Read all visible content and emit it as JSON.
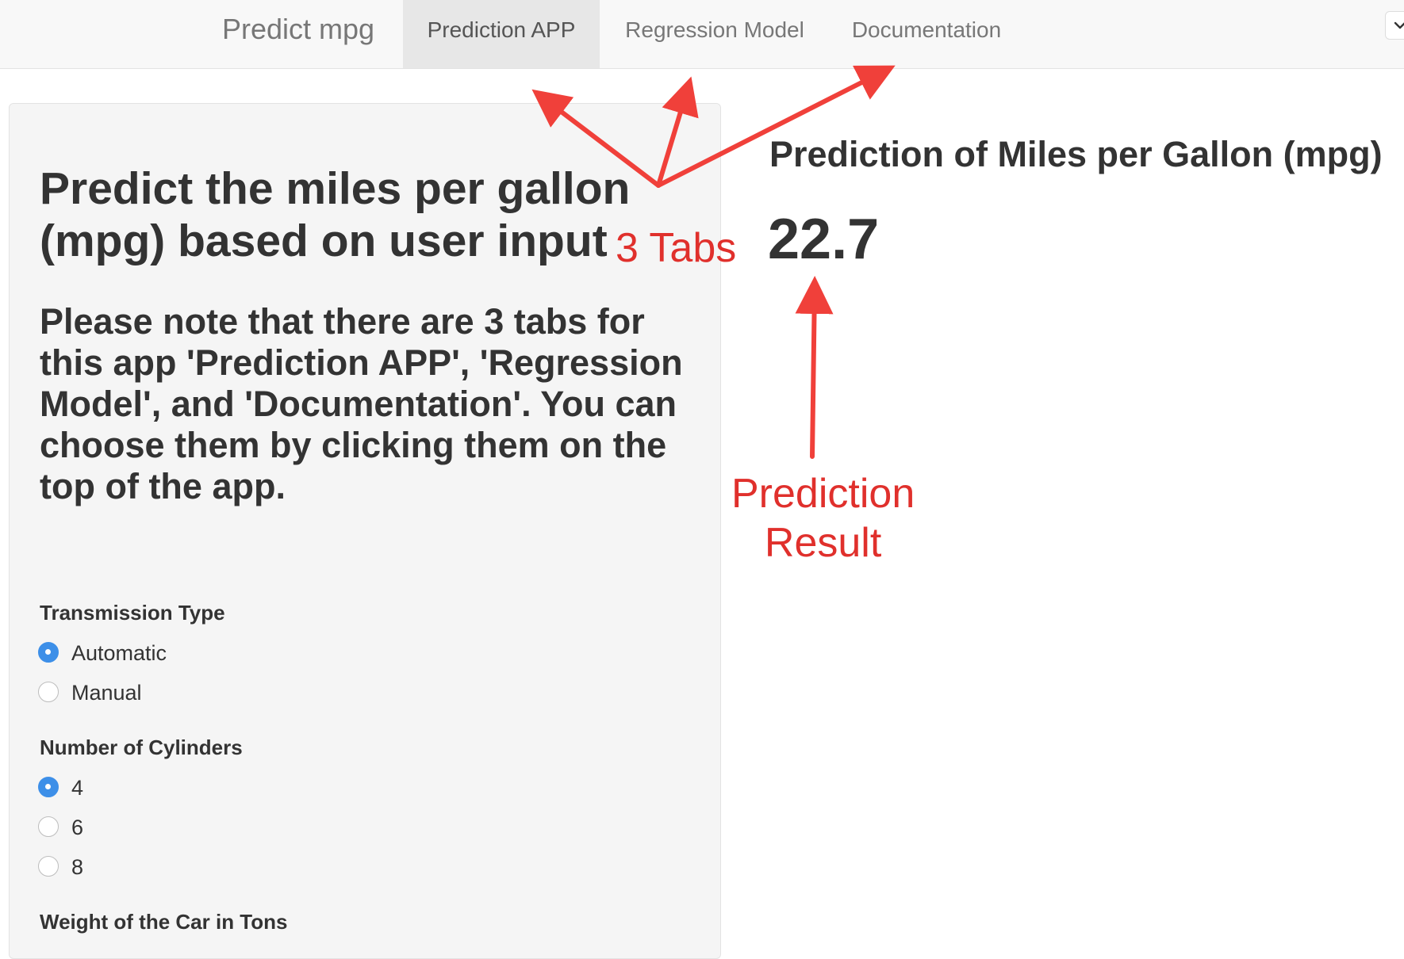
{
  "navbar": {
    "brand": "Predict mpg",
    "tabs": [
      {
        "label": "Prediction APP",
        "active": true
      },
      {
        "label": "Regression Model",
        "active": false
      },
      {
        "label": "Documentation",
        "active": false
      }
    ]
  },
  "sidebar": {
    "heading": "Predict the miles per gallon (mpg) based on user input",
    "note": "Please note that there are 3 tabs for this app 'Prediction APP', 'Regression Model', and 'Documentation'. You can choose them by clicking them on the top of the app.",
    "transmission": {
      "label": "Transmission Type",
      "options": [
        {
          "label": "Automatic",
          "checked": true
        },
        {
          "label": "Manual",
          "checked": false
        }
      ]
    },
    "cylinders": {
      "label": "Number of Cylinders",
      "options": [
        {
          "label": "4",
          "checked": true
        },
        {
          "label": "6",
          "checked": false
        },
        {
          "label": "8",
          "checked": false
        }
      ]
    },
    "weight": {
      "label": "Weight of the Car in Tons"
    }
  },
  "main": {
    "heading": "Prediction of Miles per Gallon (mpg)",
    "value": "22.7"
  },
  "annotations": {
    "tabs_label": "3 Tabs",
    "result_label_line1": "Prediction",
    "result_label_line2": "Result"
  },
  "colors": {
    "accent": "#3d8fe8",
    "annotation": "#e0302c",
    "navbar_bg": "#f8f8f8",
    "well_bg": "#f5f5f5"
  },
  "icons": {
    "toggle": "chevron-down-icon"
  }
}
